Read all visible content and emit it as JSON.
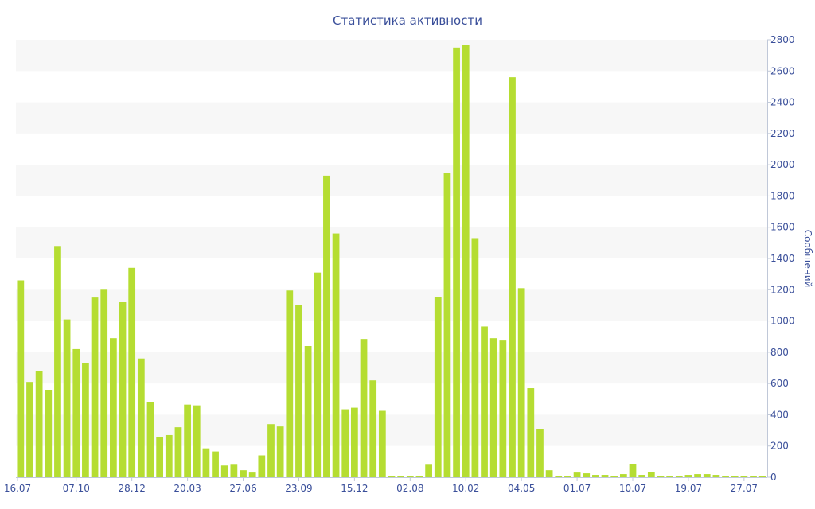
{
  "chart_data": {
    "type": "bar",
    "title": "Статистика активности",
    "xlabel": "",
    "ylabel": "Сообщений",
    "y_axis_side": "right",
    "ylim": [
      0,
      2800
    ],
    "yticks": [
      0,
      200,
      400,
      600,
      800,
      1000,
      1200,
      1400,
      1600,
      1800,
      2000,
      2200,
      2400,
      2600,
      2800
    ],
    "xtick_labels": [
      {
        "index": 0,
        "label": "16.07"
      },
      {
        "index": 6,
        "label": "07.10"
      },
      {
        "index": 12,
        "label": "28.12"
      },
      {
        "index": 18,
        "label": "20.03"
      },
      {
        "index": 24,
        "label": "27.06"
      },
      {
        "index": 30,
        "label": "23.09"
      },
      {
        "index": 36,
        "label": "15.12"
      },
      {
        "index": 42,
        "label": "02.08"
      },
      {
        "index": 48,
        "label": "10.02"
      },
      {
        "index": 54,
        "label": "04.05"
      },
      {
        "index": 60,
        "label": "01.07"
      },
      {
        "index": 66,
        "label": "10.07"
      },
      {
        "index": 72,
        "label": "19.07"
      },
      {
        "index": 78,
        "label": "27.07"
      }
    ],
    "grid": "horizontal-bands",
    "bar_color": "#b5dd32",
    "band_color": "#f7f7f7",
    "text_color": "#3a4f9a",
    "values": [
      1260,
      610,
      680,
      560,
      1480,
      1010,
      820,
      730,
      1150,
      1200,
      890,
      1120,
      1340,
      760,
      480,
      255,
      270,
      320,
      465,
      460,
      185,
      165,
      75,
      80,
      45,
      30,
      140,
      340,
      325,
      1195,
      1100,
      840,
      1310,
      1930,
      1560,
      435,
      445,
      885,
      620,
      425,
      10,
      8,
      10,
      10,
      80,
      1155,
      1945,
      2750,
      2765,
      1530,
      965,
      890,
      875,
      2560,
      1210,
      570,
      310,
      45,
      10,
      8,
      30,
      25,
      15,
      15,
      8,
      20,
      85,
      15,
      35,
      10,
      8,
      8,
      15,
      20,
      20,
      15,
      8,
      10,
      10,
      8,
      8
    ]
  }
}
